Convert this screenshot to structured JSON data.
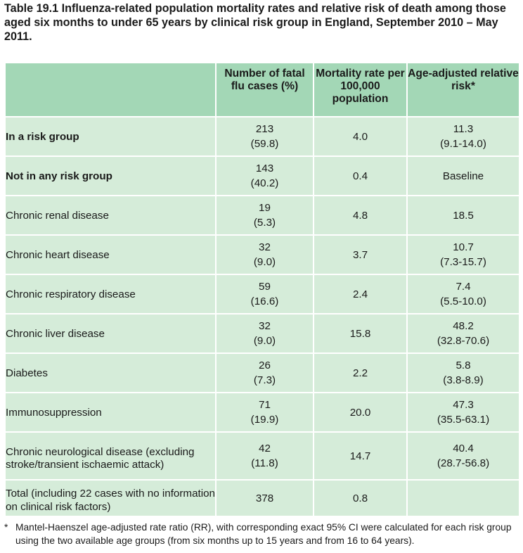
{
  "title": "Table 19.1 Influenza-related population mortality rates and relative risk of death among those aged six months to under 65 years by clinical risk group in England, September 2010 – May 2011.",
  "headers": {
    "group": "",
    "cases": "Number of fatal flu cases (%)",
    "rate": "Mortality rate per 100,000 population",
    "risk": "Age-adjusted relative risk*"
  },
  "rows": [
    {
      "label": "In a risk group",
      "cases": "213",
      "pct": "(59.8)",
      "rate": "4.0",
      "risk": "11.3",
      "ci": "(9.1-14.0)"
    },
    {
      "label": "Not in any risk group",
      "cases": "143",
      "pct": "(40.2)",
      "rate": "0.4",
      "risk": "Baseline",
      "ci": ""
    },
    {
      "label": "Chronic renal disease",
      "cases": "19",
      "pct": "(5.3)",
      "rate": "4.8",
      "risk": "18.5",
      "ci": ""
    },
    {
      "label": "Chronic heart disease",
      "cases": "32",
      "pct": "(9.0)",
      "rate": "3.7",
      "risk": "10.7",
      "ci": "(7.3-15.7)"
    },
    {
      "label": "Chronic respiratory disease",
      "cases": "59",
      "pct": "(16.6)",
      "rate": "2.4",
      "risk": "7.4",
      "ci": "(5.5-10.0)"
    },
    {
      "label": "Chronic liver disease",
      "cases": "32",
      "pct": "(9.0)",
      "rate": "15.8",
      "risk": "48.2",
      "ci": "(32.8-70.6)"
    },
    {
      "label": "Diabetes",
      "cases": "26",
      "pct": "(7.3)",
      "rate": "2.2",
      "risk": "5.8",
      "ci": "(3.8-8.9)"
    },
    {
      "label": "Immunosuppression",
      "cases": "71",
      "pct": "(19.9)",
      "rate": "20.0",
      "risk": "47.3",
      "ci": "(35.5-63.1)"
    },
    {
      "label": "Chronic neurological disease (excluding stroke/transient ischaemic attack)",
      "cases": "42",
      "pct": "(11.8)",
      "rate": "14.7",
      "risk": "40.4",
      "ci": "(28.7-56.8)"
    },
    {
      "label": "Total (including 22 cases with no information on clinical risk factors)",
      "cases": "378",
      "pct": "",
      "rate": "0.8",
      "risk": "",
      "ci": ""
    }
  ],
  "footnote": {
    "mark": "*",
    "text": "Mantel-Haenszel age-adjusted rate ratio (RR), with corresponding exact 95% CI were calculated for each risk group using the two available age groups (from six months up to 15 years and from 16 to 64 years)."
  }
}
